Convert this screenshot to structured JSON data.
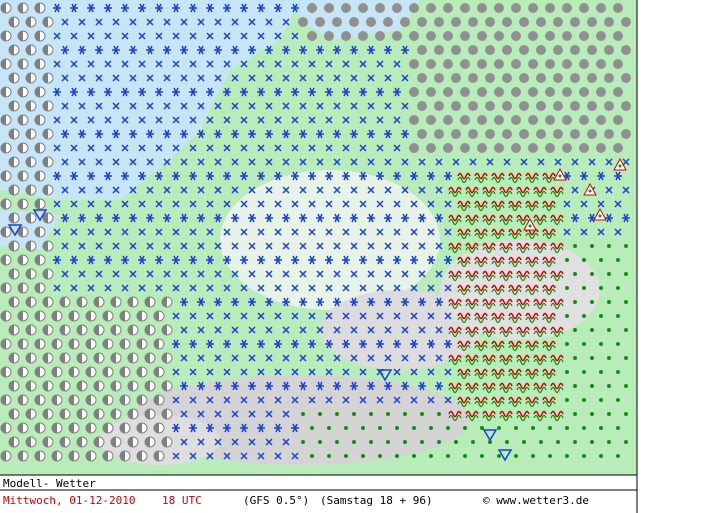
{
  "map": {
    "caption": {
      "model": "Modell- Wetter",
      "date": "Mittwoch, 01-12-2010",
      "time": "18 UTC",
      "source": "(GFS 0.5°)",
      "run": "(Samstag 18 + 96)",
      "credit": "© www.wetter3.de"
    }
  }
}
